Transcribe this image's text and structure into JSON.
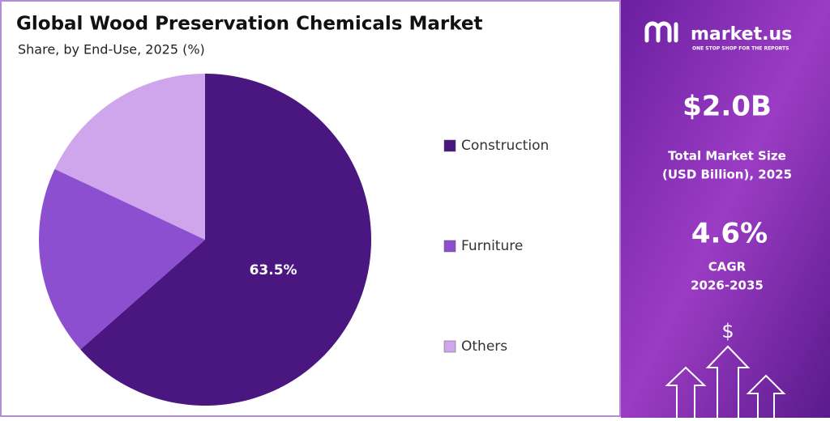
{
  "chart_data": {
    "type": "pie",
    "title": "Global Wood Preservation Chemicals Market",
    "subtitle": "Share, by End-Use, 2025 (%)",
    "categories": [
      "Construction",
      "Furniture",
      "Others"
    ],
    "values": [
      63.5,
      18.5,
      18
    ],
    "value_labels": [
      "63.5%",
      null,
      null
    ],
    "colors": [
      "#4a1680",
      "#8c4fd0",
      "#cfa6ec"
    ],
    "legend": "right"
  },
  "panel": {
    "brand": "market.us",
    "tagline": "ONE STOP SHOP FOR THE REPORTS",
    "market_size": "$2.0B",
    "market_size_label_1": "Total Market Size",
    "market_size_label_2": "(USD Billion), 2025",
    "cagr": "4.6%",
    "cagr_label": "CAGR",
    "cagr_period": "2026-2035",
    "icon_symbol": "$"
  }
}
